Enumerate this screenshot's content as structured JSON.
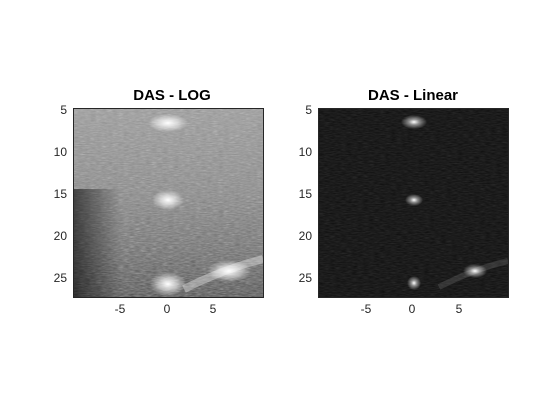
{
  "figure": {
    "panels": [
      {
        "title": "DAS - LOG",
        "scale": "log",
        "yticks": [
          "5",
          "10",
          "15",
          "20",
          "25"
        ],
        "xticks": [
          "-5",
          "0",
          "5"
        ],
        "ylim": [
          5,
          27.3
        ],
        "xlim": [
          -10,
          10
        ]
      },
      {
        "title": "DAS - Linear",
        "scale": "linear",
        "yticks": [
          "5",
          "10",
          "15",
          "20",
          "25"
        ],
        "xticks": [
          "-5",
          "0",
          "5"
        ],
        "ylim": [
          5,
          27.3
        ],
        "xlim": [
          -10,
          10
        ]
      }
    ],
    "colormap": "gray"
  }
}
